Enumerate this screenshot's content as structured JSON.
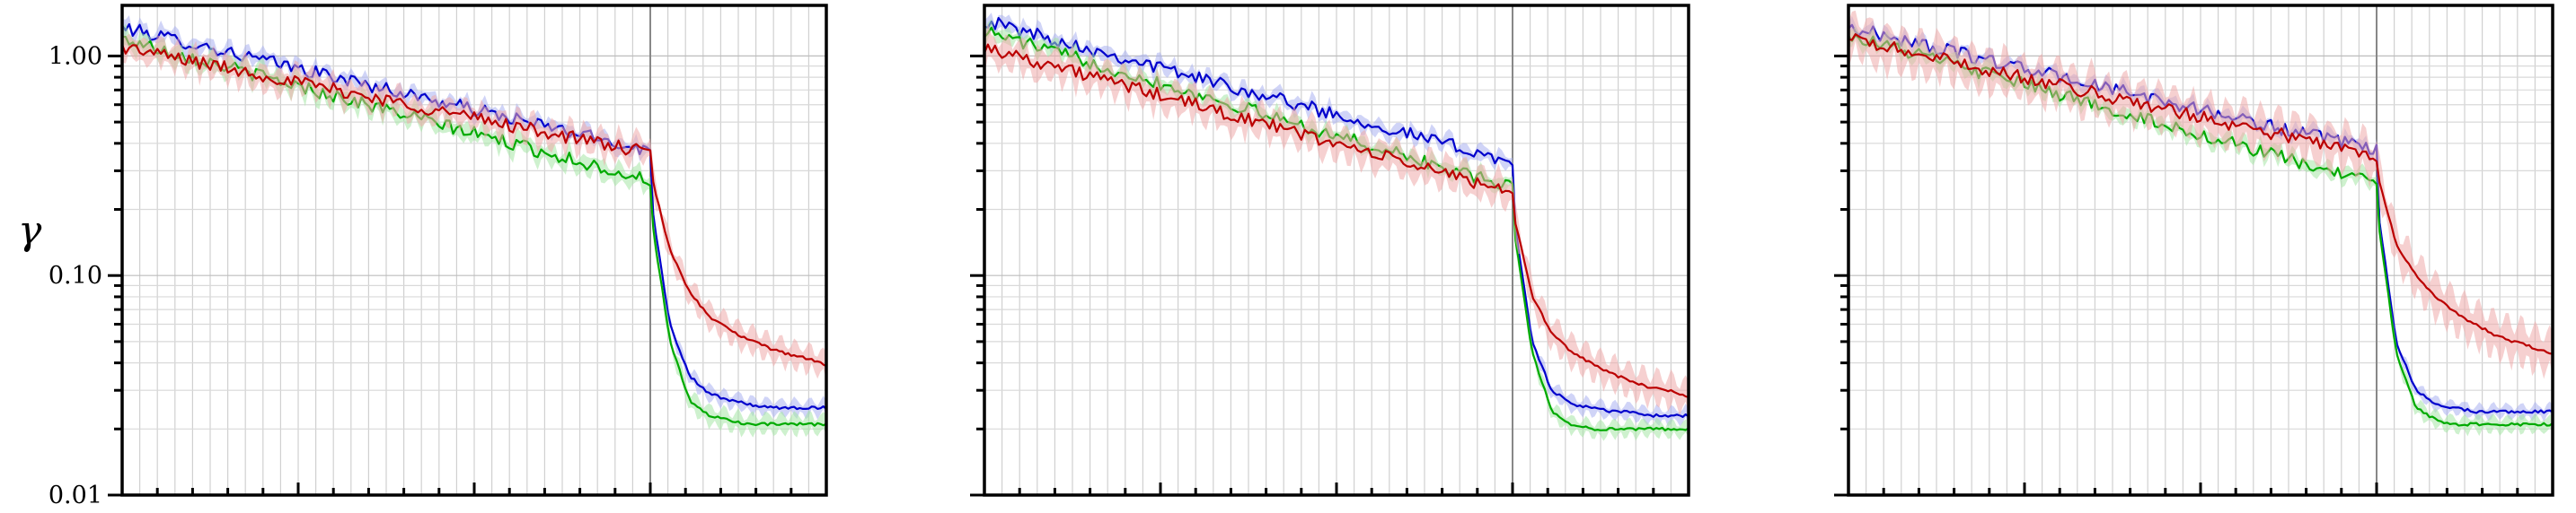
{
  "figure": {
    "ylabel": "γ"
  },
  "chart_data": [
    {
      "type": "line",
      "yscale": "log",
      "ylim": [
        0.01,
        1.7
      ],
      "xlim": [
        0,
        1
      ],
      "yticks": [
        0.01,
        0.1,
        1.0
      ],
      "ytick_labels": [
        "0.01",
        "0.10",
        "1.00"
      ],
      "ylabel": "γ",
      "xlabel": "",
      "grid": true,
      "vline_x": 0.75,
      "series": [
        {
          "color": "#0000cc",
          "fill": "#aab0f0",
          "start": 1.35,
          "pre_end": 0.37,
          "post": [
            0.23,
            0.06,
            0.035,
            0.029,
            0.027,
            0.026,
            0.025,
            0.025,
            0.025,
            0.025
          ],
          "band": 0.12
        },
        {
          "color": "#00aa00",
          "fill": "#a6e6a6",
          "start": 1.2,
          "pre_end": 0.27,
          "post": [
            0.2,
            0.05,
            0.027,
            0.023,
            0.022,
            0.021,
            0.021,
            0.021,
            0.021,
            0.021
          ],
          "band": 0.15
        },
        {
          "color": "#bb0000",
          "fill": "#eeaaaa",
          "start": 1.1,
          "pre_end": 0.36,
          "post": [
            0.3,
            0.13,
            0.085,
            0.065,
            0.057,
            0.051,
            0.047,
            0.044,
            0.042,
            0.039
          ],
          "band": 0.2
        }
      ]
    },
    {
      "type": "line",
      "yscale": "log",
      "ylim": [
        0.01,
        1.7
      ],
      "xlim": [
        0,
        1
      ],
      "yticks": [
        0.01,
        0.1,
        1.0
      ],
      "ytick_labels": [
        "",
        "",
        ""
      ],
      "ylabel": "",
      "xlabel": "",
      "grid": true,
      "vline_x": 0.75,
      "series": [
        {
          "color": "#0000cc",
          "fill": "#aab0f0",
          "start": 1.45,
          "pre_end": 0.33,
          "post": [
            0.2,
            0.05,
            0.03,
            0.026,
            0.025,
            0.024,
            0.024,
            0.023,
            0.023,
            0.023
          ],
          "band": 0.12
        },
        {
          "color": "#00aa00",
          "fill": "#a6e6a6",
          "start": 1.3,
          "pre_end": 0.25,
          "post": [
            0.18,
            0.045,
            0.024,
            0.021,
            0.02,
            0.02,
            0.02,
            0.02,
            0.02,
            0.02
          ],
          "band": 0.12
        },
        {
          "color": "#bb0000",
          "fill": "#eeaaaa",
          "start": 1.1,
          "pre_end": 0.24,
          "post": [
            0.2,
            0.08,
            0.055,
            0.045,
            0.04,
            0.036,
            0.033,
            0.031,
            0.03,
            0.028
          ],
          "band": 0.25
        }
      ]
    },
    {
      "type": "line",
      "yscale": "log",
      "ylim": [
        0.01,
        1.7
      ],
      "xlim": [
        0,
        1
      ],
      "yticks": [
        0.01,
        0.1,
        1.0
      ],
      "ytick_labels": [
        "",
        "",
        ""
      ],
      "ylabel": "",
      "xlabel": "",
      "grid": true,
      "vline_x": 0.75,
      "series": [
        {
          "color": "#0000cc",
          "fill": "#aab0f0",
          "start": 1.35,
          "pre_end": 0.37,
          "post": [
            0.22,
            0.05,
            0.03,
            0.026,
            0.025,
            0.024,
            0.024,
            0.024,
            0.024,
            0.024
          ],
          "band": 0.1
        },
        {
          "color": "#00aa00",
          "fill": "#a6e6a6",
          "start": 1.25,
          "pre_end": 0.26,
          "post": [
            0.2,
            0.045,
            0.025,
            0.022,
            0.021,
            0.021,
            0.021,
            0.021,
            0.021,
            0.021
          ],
          "band": 0.12
        },
        {
          "color": "#bb0000",
          "fill": "#eeaaaa",
          "start": 1.2,
          "pre_end": 0.35,
          "post": [
            0.3,
            0.14,
            0.1,
            0.08,
            0.068,
            0.06,
            0.054,
            0.05,
            0.047,
            0.044
          ],
          "band": 0.35
        }
      ]
    }
  ]
}
